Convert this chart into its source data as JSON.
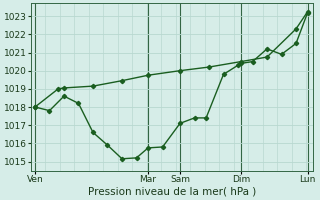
{
  "xlabel": "Pression niveau de la mer( hPa )",
  "ylim": [
    1014.5,
    1023.7
  ],
  "xlim": [
    -0.15,
    9.6
  ],
  "yticks": [
    1015,
    1016,
    1017,
    1018,
    1019,
    1020,
    1021,
    1022,
    1023
  ],
  "bg_color": "#d6ede8",
  "grid_color": "#b8d8d0",
  "line_color": "#1a5e20",
  "xtick_labels": [
    "Ven",
    "",
    "Mar",
    "Sam",
    "",
    "Dim",
    "",
    "Lun"
  ],
  "xtick_positions": [
    0,
    2,
    3.9,
    5.0,
    6.5,
    7.1,
    8.3,
    9.4
  ],
  "vline_positions": [
    0,
    3.9,
    5.0,
    7.1,
    9.4
  ],
  "line1_x": [
    0.0,
    0.5,
    1.0,
    1.5,
    2.0,
    2.5,
    3.0,
    3.5,
    3.9,
    4.4,
    5.0,
    5.5,
    5.9,
    6.5,
    7.0,
    7.1,
    7.5,
    8.0,
    8.5,
    9.0,
    9.4
  ],
  "line1_y": [
    1018.0,
    1017.8,
    1018.6,
    1018.2,
    1016.6,
    1015.9,
    1015.15,
    1015.2,
    1015.75,
    1015.8,
    1017.1,
    1017.4,
    1017.4,
    1019.8,
    1020.3,
    1020.4,
    1020.5,
    1021.2,
    1020.9,
    1021.5,
    1023.2
  ],
  "line2_x": [
    0.0,
    0.8,
    1.0,
    2.0,
    3.0,
    3.9,
    5.0,
    6.0,
    7.1,
    8.0,
    9.0,
    9.4
  ],
  "line2_y": [
    1018.0,
    1019.0,
    1019.05,
    1019.15,
    1019.45,
    1019.75,
    1020.0,
    1020.2,
    1020.5,
    1020.75,
    1022.3,
    1023.25
  ]
}
